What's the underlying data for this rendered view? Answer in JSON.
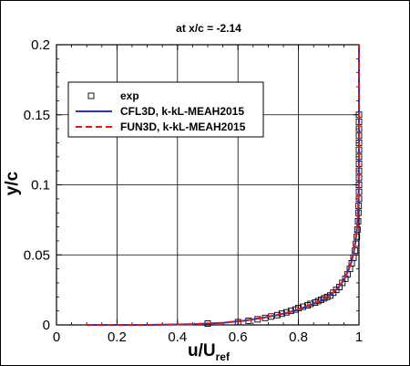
{
  "chart_data": {
    "type": "line",
    "title": "at x/c = -2.14",
    "xlabel": "u/U",
    "xlabel_subscript": "ref",
    "ylabel": "y/c",
    "xlim": [
      0,
      1
    ],
    "ylim": [
      0,
      0.2
    ],
    "xticks": [
      "0",
      "0.2",
      "0.4",
      "0.6",
      "0.8",
      "1"
    ],
    "yticks": [
      "0",
      "0.05",
      "0.1",
      "0.15",
      "0.2"
    ],
    "grid": true,
    "legend_position": "upper-left",
    "series": [
      {
        "name": "exp",
        "style": "markers",
        "marker": "open-square",
        "color": "#000000",
        "x": [
          0.5,
          0.6,
          0.635,
          0.665,
          0.69,
          0.71,
          0.73,
          0.745,
          0.76,
          0.775,
          0.79,
          0.8,
          0.815,
          0.83,
          0.84,
          0.855,
          0.865,
          0.875,
          0.885,
          0.895,
          0.905,
          0.915,
          0.925,
          0.935,
          0.945,
          0.955,
          0.962,
          0.97,
          0.976,
          0.982,
          0.987,
          0.99,
          0.993,
          0.995,
          0.997,
          0.998,
          0.999,
          1.0,
          1.0,
          1.0,
          1.0,
          1.0,
          1.0,
          1.0,
          1.0,
          1.0,
          1.0,
          1.0,
          1.0,
          1.0
        ],
        "y": [
          0.001,
          0.002,
          0.003,
          0.004,
          0.005,
          0.006,
          0.007,
          0.008,
          0.009,
          0.01,
          0.011,
          0.012,
          0.013,
          0.014,
          0.015,
          0.016,
          0.017,
          0.018,
          0.019,
          0.02,
          0.021,
          0.023,
          0.025,
          0.027,
          0.03,
          0.033,
          0.036,
          0.04,
          0.044,
          0.048,
          0.053,
          0.058,
          0.063,
          0.068,
          0.074,
          0.08,
          0.085,
          0.09,
          0.095,
          0.1,
          0.105,
          0.11,
          0.115,
          0.12,
          0.125,
          0.13,
          0.135,
          0.14,
          0.145,
          0.15
        ]
      },
      {
        "name": "CFL3D, k-kL-MEAH2015",
        "style": "solid",
        "color": "#2233dd",
        "x": [
          0.1,
          0.3,
          0.45,
          0.55,
          0.62,
          0.68,
          0.73,
          0.77,
          0.8,
          0.83,
          0.86,
          0.88,
          0.9,
          0.92,
          0.94,
          0.955,
          0.965,
          0.975,
          0.983,
          0.989,
          0.994,
          0.997,
          0.999,
          1.0,
          1.0
        ],
        "y": [
          0.0,
          0.0,
          0.0005,
          0.0015,
          0.003,
          0.005,
          0.007,
          0.009,
          0.011,
          0.0135,
          0.016,
          0.018,
          0.0205,
          0.024,
          0.029,
          0.034,
          0.039,
          0.045,
          0.052,
          0.06,
          0.07,
          0.08,
          0.095,
          0.12,
          0.2
        ]
      },
      {
        "name": "FUN3D, k-kL-MEAH2015",
        "style": "dashed",
        "color": "#ee1111",
        "x": [
          0.1,
          0.3,
          0.45,
          0.55,
          0.62,
          0.68,
          0.73,
          0.77,
          0.8,
          0.83,
          0.86,
          0.88,
          0.9,
          0.92,
          0.94,
          0.955,
          0.965,
          0.975,
          0.983,
          0.989,
          0.994,
          0.997,
          0.999,
          1.0,
          1.0
        ],
        "y": [
          0.0,
          0.0,
          0.0005,
          0.0015,
          0.003,
          0.005,
          0.0072,
          0.0092,
          0.0112,
          0.0137,
          0.0162,
          0.0182,
          0.0207,
          0.0242,
          0.0292,
          0.0342,
          0.0392,
          0.0452,
          0.0522,
          0.0602,
          0.0702,
          0.0802,
          0.0952,
          0.12,
          0.2
        ]
      }
    ]
  }
}
